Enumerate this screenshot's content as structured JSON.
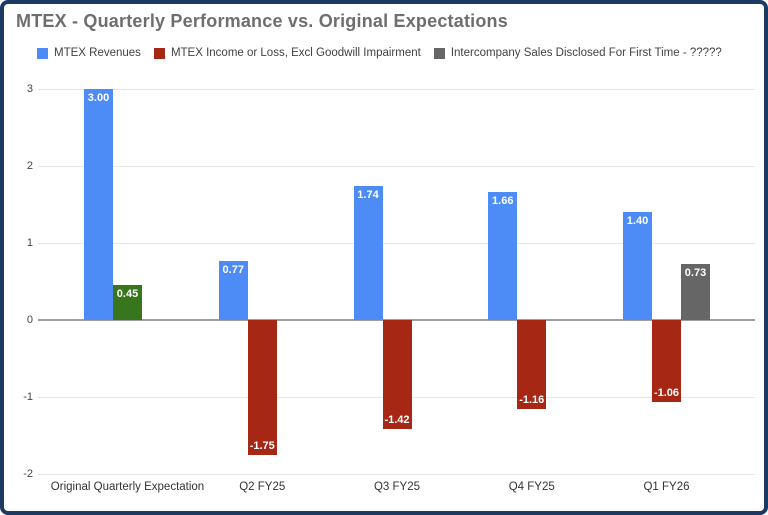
{
  "title": "MTEX - Quarterly Performance vs. Original Expectations",
  "legend": {
    "items": [
      {
        "label": "MTEX Revenues",
        "color": "#4d8cf7"
      },
      {
        "label": "MTEX Income or Loss, Excl Goodwill Impairment",
        "color": "#a52714"
      },
      {
        "label": "Intercompany Sales Disclosed For First Time - ?????",
        "color": "#666666"
      }
    ]
  },
  "chart_data": {
    "type": "bar",
    "title": "MTEX - Quarterly Performance vs. Original Expectations",
    "categories": [
      "Original Quarterly Expectation",
      "Q2 FY25",
      "Q3 FY25",
      "Q4 FY25",
      "Q1 FY26"
    ],
    "series": [
      {
        "name": "MTEX Revenues",
        "color": "#4d8cf7",
        "values": [
          3.0,
          0.77,
          1.74,
          1.66,
          1.4
        ]
      },
      {
        "name": "MTEX Income or Loss, Excl Goodwill Impairment",
        "color": "#a52714",
        "point_colors": [
          "#38761d",
          null,
          null,
          null,
          null
        ],
        "values": [
          0.45,
          -1.75,
          -1.42,
          -1.16,
          -1.06
        ]
      },
      {
        "name": "Intercompany Sales Disclosed For First Time - ?????",
        "color": "#666666",
        "values": [
          null,
          null,
          null,
          null,
          0.73
        ]
      }
    ],
    "y_ticks": [
      3,
      2,
      1,
      0,
      -1,
      -2
    ],
    "ylim": [
      -2,
      3
    ],
    "grid": true,
    "legend_position": "top",
    "bar_labels": "each bar labeled with its value to two decimals, white bold text inside bar end"
  },
  "colors": {
    "frame_border": "#1b3a63",
    "title_text": "#6e6e6e",
    "legend_text": "#424242",
    "gridline": "#e6e6e6",
    "zero_line": "#9aa0a6",
    "axis_text": "#444444",
    "bar_label_text": "#ffffff"
  }
}
